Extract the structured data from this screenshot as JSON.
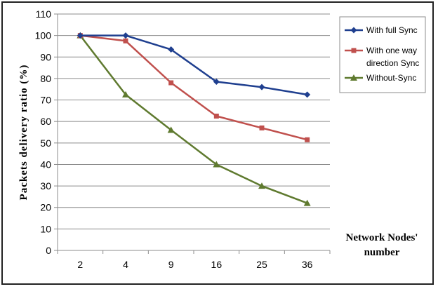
{
  "chart_data": {
    "type": "line",
    "categories": [
      "2",
      "4",
      "9",
      "16",
      "25",
      "36"
    ],
    "ylabel": "Packets delivery ratio (%)",
    "xlabel_lines": [
      "Network Nodes'",
      "number"
    ],
    "ylim": [
      0,
      110
    ],
    "yticks": [
      0,
      10,
      20,
      30,
      40,
      50,
      60,
      70,
      80,
      90,
      100,
      110
    ],
    "grid": true,
    "legend_position": "top-right",
    "series": [
      {
        "name_lines": [
          "With full Sync"
        ],
        "color": "#1F3F8F",
        "marker": "diamond",
        "values": [
          100,
          100,
          93.5,
          78.5,
          76,
          72.5
        ]
      },
      {
        "name_lines": [
          "With one way",
          "direction Sync"
        ],
        "color": "#C0504D",
        "marker": "square",
        "values": [
          100,
          97.5,
          78,
          62.5,
          57,
          51.5
        ]
      },
      {
        "name_lines": [
          "Without-Sync"
        ],
        "color": "#5F7A2F",
        "marker": "triangle",
        "values": [
          100,
          72.5,
          56,
          40,
          30,
          22
        ]
      }
    ]
  }
}
